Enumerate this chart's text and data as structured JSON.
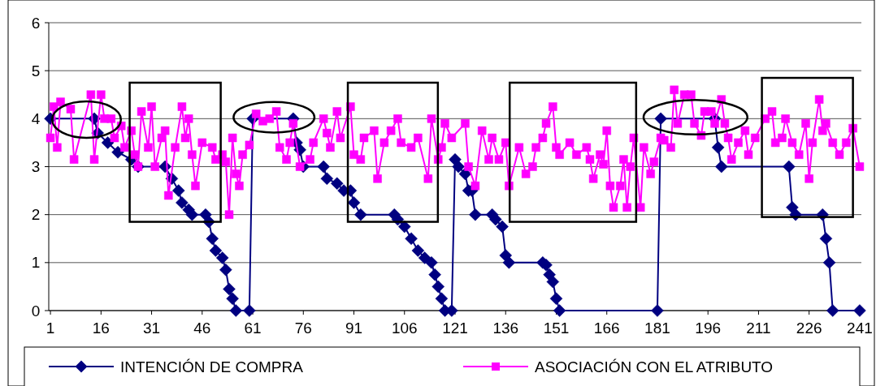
{
  "chart_data": {
    "type": "line",
    "xlim": [
      0.5,
      241.5
    ],
    "xticks": [
      1,
      16,
      31,
      46,
      61,
      76,
      91,
      106,
      121,
      136,
      151,
      166,
      181,
      196,
      211,
      226,
      241
    ],
    "ylim": [
      0,
      6
    ],
    "yticks": [
      0,
      1,
      2,
      3,
      4,
      5,
      6
    ],
    "grid": "y",
    "legend": "bottom",
    "line_style": "solid",
    "series": [
      {
        "name": "INTENCIÓN DE COMPRA",
        "color": "#000080",
        "marker": "diamond",
        "x": [
          1,
          14,
          15,
          18,
          21,
          25,
          27,
          35,
          37,
          39,
          40,
          42,
          43,
          47,
          48,
          49,
          50,
          52,
          53,
          54,
          55,
          56,
          60,
          61,
          73,
          74,
          75,
          76,
          82,
          83,
          86,
          88,
          90,
          91,
          93,
          103,
          104,
          106,
          108,
          110,
          112,
          114,
          115,
          116,
          117,
          118,
          120,
          121,
          122,
          124,
          125,
          126,
          127,
          132,
          133,
          135,
          136,
          137,
          147,
          148,
          149,
          150,
          151,
          152,
          181,
          182,
          198,
          199,
          200,
          220,
          221,
          222,
          230,
          231,
          232,
          233,
          241
        ],
        "values": [
          4,
          4,
          3.7,
          3.5,
          3.3,
          3.15,
          3,
          3,
          2.75,
          2.5,
          2.25,
          2.1,
          2,
          2,
          1.85,
          1.5,
          1.25,
          1.1,
          0.85,
          0.45,
          0.25,
          0,
          0,
          4,
          4,
          3.5,
          3.35,
          3,
          3,
          2.75,
          2.65,
          2.5,
          2.5,
          2.25,
          2,
          2,
          1.9,
          1.75,
          1.5,
          1.25,
          1.1,
          1,
          0.75,
          0.5,
          0.25,
          0,
          0,
          3.15,
          3,
          2.85,
          2.5,
          2.5,
          2,
          2,
          1.9,
          1.75,
          1.15,
          1,
          1,
          0.95,
          0.75,
          0.6,
          0.25,
          0,
          0,
          4,
          4,
          3.4,
          3,
          3,
          2.15,
          2,
          2,
          1.5,
          1,
          0,
          0
        ]
      },
      {
        "name": "ASOCIACIÓN CON EL ATRIBUTO",
        "color": "#ff00ff",
        "marker": "square",
        "x": [
          1,
          2,
          3,
          4,
          7,
          8,
          13,
          14,
          16,
          17,
          19,
          20,
          22,
          23,
          25,
          26,
          27,
          28,
          30,
          31,
          32,
          34,
          35,
          36,
          38,
          40,
          41,
          42,
          43,
          44,
          46,
          49,
          50,
          52,
          53,
          54,
          55,
          56,
          57,
          58,
          60,
          62,
          64,
          66,
          68,
          69,
          71,
          72,
          73,
          75,
          78,
          79,
          82,
          83,
          84,
          86,
          87,
          90,
          91,
          93,
          94,
          97,
          98,
          100,
          102,
          104,
          105,
          108,
          110,
          113,
          114,
          116,
          117,
          118,
          120,
          124,
          125,
          127,
          129,
          131,
          132,
          134,
          136,
          137,
          140,
          142,
          144,
          145,
          147,
          148,
          150,
          151,
          152,
          155,
          157,
          160,
          161,
          162,
          164,
          165,
          166,
          167,
          168,
          170,
          171,
          172,
          173,
          174,
          176,
          177,
          179,
          180,
          182,
          183,
          185,
          186,
          187,
          189,
          191,
          192,
          194,
          195,
          197,
          198,
          200,
          201,
          202,
          203,
          205,
          207,
          208,
          210,
          213,
          215,
          216,
          218,
          219,
          221,
          223,
          225,
          226,
          227,
          229,
          230,
          231,
          233,
          235,
          237,
          239,
          241
        ],
        "values": [
          3.6,
          4.25,
          3.4,
          4.35,
          4.2,
          3.15,
          4.5,
          3.15,
          4.5,
          4,
          4,
          3.6,
          3.85,
          3.4,
          3.75,
          3.25,
          3,
          4.15,
          3.4,
          4.25,
          3,
          3.6,
          3.75,
          2.4,
          3.4,
          4.25,
          3.6,
          4,
          3.25,
          2.6,
          3.5,
          3.4,
          3.15,
          3.25,
          3.1,
          2,
          3.6,
          2.85,
          2.6,
          3.25,
          3.45,
          4.1,
          3.95,
          4,
          4.15,
          3.4,
          3.15,
          3.5,
          3.9,
          3,
          3.15,
          3.5,
          4,
          3.7,
          3.4,
          4.15,
          3.6,
          4.25,
          3.25,
          3.15,
          3.6,
          3.75,
          2.75,
          3.5,
          3.75,
          4,
          3.5,
          3.4,
          3.6,
          2.75,
          4,
          3.15,
          3.4,
          3.9,
          3.6,
          3.9,
          3,
          2.6,
          3.75,
          3.15,
          3.6,
          3.15,
          3.5,
          2.6,
          3.4,
          2.85,
          3,
          3.4,
          3.6,
          3.9,
          4.25,
          3.4,
          3.25,
          3.5,
          3.25,
          3.4,
          3.15,
          2.75,
          3.25,
          3.05,
          3.75,
          2.6,
          2.15,
          2.6,
          3.15,
          2.15,
          3,
          3.6,
          2.15,
          3.4,
          2.85,
          3.1,
          3.6,
          3.55,
          3.4,
          4.6,
          3.9,
          4.5,
          4.5,
          3.9,
          3.65,
          4.15,
          4.15,
          3.9,
          4.4,
          3.9,
          3.6,
          3.15,
          3.5,
          3.75,
          3.25,
          3.6,
          4,
          4.15,
          3.5,
          3.6,
          4,
          3.5,
          3.25,
          3.9,
          2.75,
          3.5,
          4.4,
          3.75,
          3.9,
          3.5,
          3.25,
          3.5,
          3.8,
          3
        ]
      }
    ]
  }
}
